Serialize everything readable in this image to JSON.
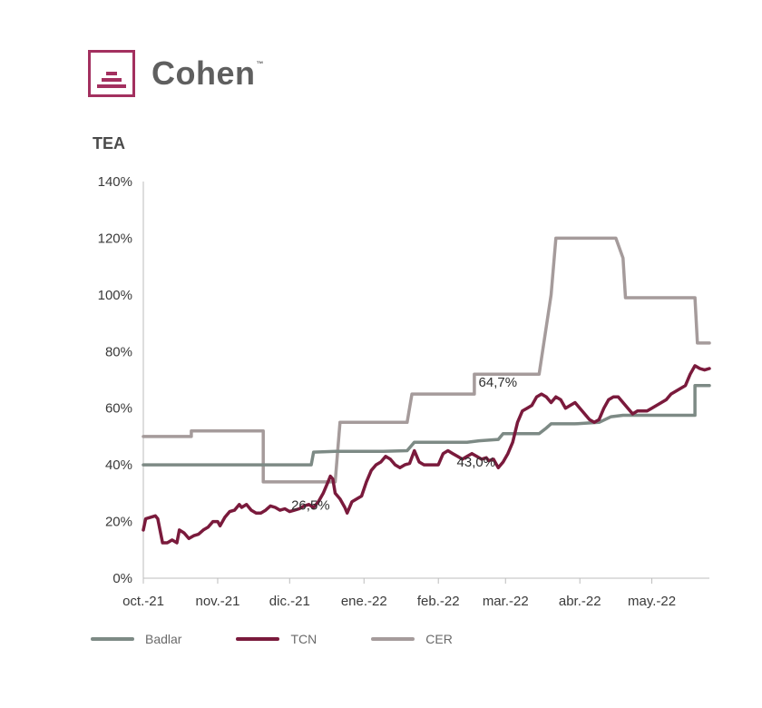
{
  "brand": {
    "name": "Cohen",
    "tm": "™",
    "color": "#a3305f"
  },
  "chart_data": {
    "type": "line",
    "ylabel": "TEA",
    "ylim": [
      0,
      140
    ],
    "yticks": [
      0,
      20,
      40,
      60,
      80,
      100,
      120,
      140
    ],
    "ytick_labels": [
      "0%",
      "20%",
      "40%",
      "60%",
      "80%",
      "100%",
      "120%",
      "140%"
    ],
    "xlim": [
      0,
      236
    ],
    "xticks": [
      0,
      31,
      61,
      92,
      123,
      151,
      182,
      212
    ],
    "xtick_labels": [
      "oct.-21",
      "nov.-21",
      "dic.-21",
      "ene.-22",
      "feb.-22",
      "mar.-22",
      "abr.-22",
      "may.-22"
    ],
    "grid": false,
    "legend_position": "bottom",
    "series": [
      {
        "name": "Badlar",
        "color": "#7d8a85",
        "points": [
          [
            0,
            40
          ],
          [
            10,
            40
          ],
          [
            20,
            40
          ],
          [
            30,
            40
          ],
          [
            40,
            40
          ],
          [
            50,
            40
          ],
          [
            60,
            40
          ],
          [
            70,
            40
          ],
          [
            71,
            44.5
          ],
          [
            80,
            44.8
          ],
          [
            90,
            44.8
          ],
          [
            100,
            44.8
          ],
          [
            110,
            45
          ],
          [
            113,
            48
          ],
          [
            125,
            48
          ],
          [
            135,
            48
          ],
          [
            140,
            48.5
          ],
          [
            148,
            49
          ],
          [
            150,
            51
          ],
          [
            165,
            51
          ],
          [
            168,
            53
          ],
          [
            170,
            54.5
          ],
          [
            180,
            54.5
          ],
          [
            190,
            55
          ],
          [
            195,
            57
          ],
          [
            200,
            57.5
          ],
          [
            210,
            57.5
          ],
          [
            215,
            57.5
          ],
          [
            220,
            57.5
          ],
          [
            230,
            57.5
          ],
          [
            230,
            68
          ],
          [
            236,
            68
          ]
        ]
      },
      {
        "name": "TCN",
        "color": "#7a1a3c",
        "points": [
          [
            0,
            17
          ],
          [
            1,
            21
          ],
          [
            3,
            21.5
          ],
          [
            5,
            22
          ],
          [
            6,
            21
          ],
          [
            8,
            12.5
          ],
          [
            10,
            12.5
          ],
          [
            12,
            13.5
          ],
          [
            14,
            12.5
          ],
          [
            15,
            17
          ],
          [
            17,
            16
          ],
          [
            19,
            14
          ],
          [
            21,
            15
          ],
          [
            23,
            15.5
          ],
          [
            25,
            17
          ],
          [
            27,
            18
          ],
          [
            29,
            20
          ],
          [
            31,
            20
          ],
          [
            32,
            18.5
          ],
          [
            34,
            21.5
          ],
          [
            36,
            23.5
          ],
          [
            38,
            24
          ],
          [
            40,
            26
          ],
          [
            41,
            25
          ],
          [
            43,
            26
          ],
          [
            45,
            24
          ],
          [
            47,
            23
          ],
          [
            49,
            23
          ],
          [
            51,
            24
          ],
          [
            53,
            25.5
          ],
          [
            55,
            25
          ],
          [
            57,
            24
          ],
          [
            59,
            24.5
          ],
          [
            61,
            23.5
          ],
          [
            63,
            24
          ],
          [
            65,
            24.5
          ],
          [
            67,
            25.5
          ],
          [
            69,
            26
          ],
          [
            71,
            25
          ],
          [
            73,
            27
          ],
          [
            75,
            30
          ],
          [
            77,
            34
          ],
          [
            78,
            36
          ],
          [
            79,
            35
          ],
          [
            80,
            30
          ],
          [
            82,
            28
          ],
          [
            84,
            25
          ],
          [
            85,
            23
          ],
          [
            87,
            27
          ],
          [
            89,
            28
          ],
          [
            91,
            29
          ],
          [
            93,
            34
          ],
          [
            95,
            38
          ],
          [
            97,
            40
          ],
          [
            99,
            41
          ],
          [
            101,
            43
          ],
          [
            103,
            42
          ],
          [
            105,
            40
          ],
          [
            107,
            39
          ],
          [
            109,
            40
          ],
          [
            111,
            40.5
          ],
          [
            113,
            45
          ],
          [
            115,
            41
          ],
          [
            117,
            40
          ],
          [
            119,
            40
          ],
          [
            121,
            40
          ],
          [
            123,
            40
          ],
          [
            125,
            44
          ],
          [
            127,
            45
          ],
          [
            129,
            44
          ],
          [
            131,
            43
          ],
          [
            133,
            42
          ],
          [
            135,
            43
          ],
          [
            137,
            44
          ],
          [
            139,
            43
          ],
          [
            141,
            42
          ],
          [
            143,
            42.5
          ],
          [
            144,
            41.5
          ],
          [
            146,
            42
          ],
          [
            148,
            39
          ],
          [
            150,
            41
          ],
          [
            152,
            44
          ],
          [
            154,
            48
          ],
          [
            156,
            55
          ],
          [
            158,
            59
          ],
          [
            160,
            60
          ],
          [
            162,
            61
          ],
          [
            164,
            64
          ],
          [
            166,
            65
          ],
          [
            168,
            64
          ],
          [
            170,
            62
          ],
          [
            172,
            64
          ],
          [
            174,
            63
          ],
          [
            176,
            60
          ],
          [
            178,
            61
          ],
          [
            180,
            62
          ],
          [
            182,
            60
          ],
          [
            184,
            58
          ],
          [
            186,
            56
          ],
          [
            188,
            55
          ],
          [
            190,
            56
          ],
          [
            192,
            60
          ],
          [
            194,
            63
          ],
          [
            196,
            64
          ],
          [
            198,
            64
          ],
          [
            200,
            62
          ],
          [
            202,
            60
          ],
          [
            204,
            58
          ],
          [
            206,
            59
          ],
          [
            208,
            59
          ],
          [
            210,
            59
          ],
          [
            212,
            60
          ],
          [
            214,
            61
          ],
          [
            216,
            62
          ],
          [
            218,
            63
          ],
          [
            220,
            65
          ],
          [
            222,
            66
          ],
          [
            224,
            67
          ],
          [
            226,
            68
          ],
          [
            228,
            72
          ],
          [
            230,
            75
          ],
          [
            232,
            74
          ],
          [
            234,
            73.5
          ],
          [
            236,
            74
          ]
        ]
      },
      {
        "name": "CER",
        "color": "#a59b9b",
        "points": [
          [
            0,
            50
          ],
          [
            20,
            50
          ],
          [
            20,
            52
          ],
          [
            50,
            52
          ],
          [
            50,
            34
          ],
          [
            80,
            34
          ],
          [
            82,
            55
          ],
          [
            110,
            55
          ],
          [
            112,
            65
          ],
          [
            138,
            65
          ],
          [
            138,
            72
          ],
          [
            165,
            72
          ],
          [
            170,
            100
          ],
          [
            172,
            120
          ],
          [
            197,
            120
          ],
          [
            200,
            113
          ],
          [
            201,
            99
          ],
          [
            230,
            99
          ],
          [
            231,
            83
          ],
          [
            236,
            83
          ]
        ]
      }
    ],
    "annotations": [
      {
        "text": "26,5%",
        "x": 72,
        "y": 26.5
      },
      {
        "text": "43,0%",
        "x": 141,
        "y": 43
      },
      {
        "text": "64,7%",
        "x": 141,
        "y": 64.7
      }
    ]
  },
  "legend": [
    {
      "label": "Badlar",
      "color": "#7d8a85"
    },
    {
      "label": "TCN",
      "color": "#7a1a3c"
    },
    {
      "label": "CER",
      "color": "#a59b9b"
    }
  ]
}
